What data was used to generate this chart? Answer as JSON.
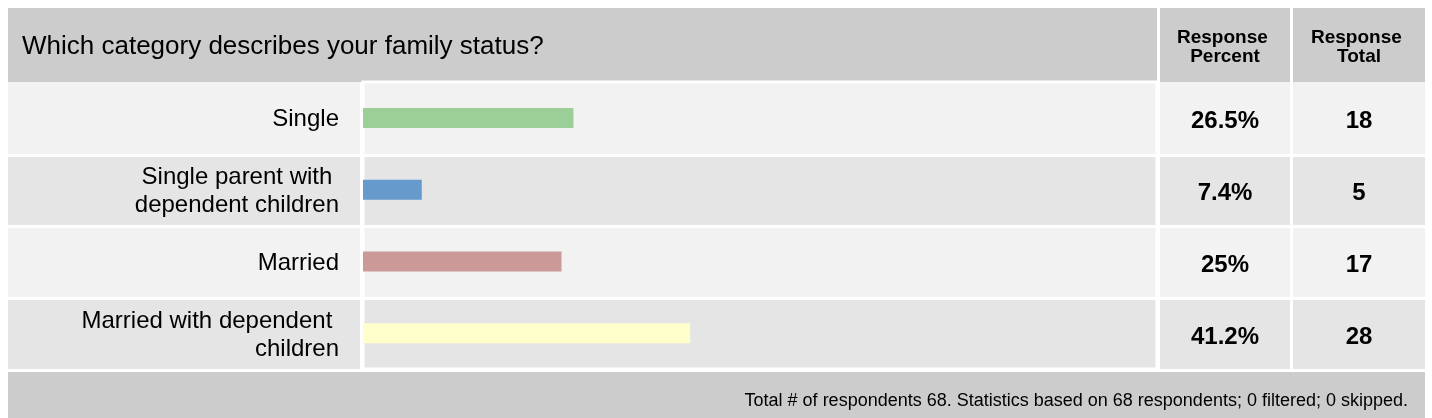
{
  "chart_data": {
    "type": "bar",
    "orientation": "horizontal",
    "title": "Which category describes your family status?",
    "categories": [
      "Single",
      "Single parent with dependent children",
      "Married",
      "Married with dependent children"
    ],
    "values": [
      26.5,
      7.4,
      25,
      41.2
    ],
    "colors": [
      "#9ccf98",
      "#6699cc",
      "#cc9999",
      "#ffffcc"
    ],
    "value_labels": [
      "26.5%",
      "7.4%",
      "25%",
      "41.2%"
    ],
    "xlim": [
      0,
      100
    ],
    "tick_labels": "y",
    "grid": false,
    "annotations": [
      "Response Percent",
      "Response Total",
      "18",
      "5",
      "17",
      "28",
      "Total # of respondents 68. Statistics based on 68 respondents; 0 filtered; 0 skipped."
    ]
  }
}
